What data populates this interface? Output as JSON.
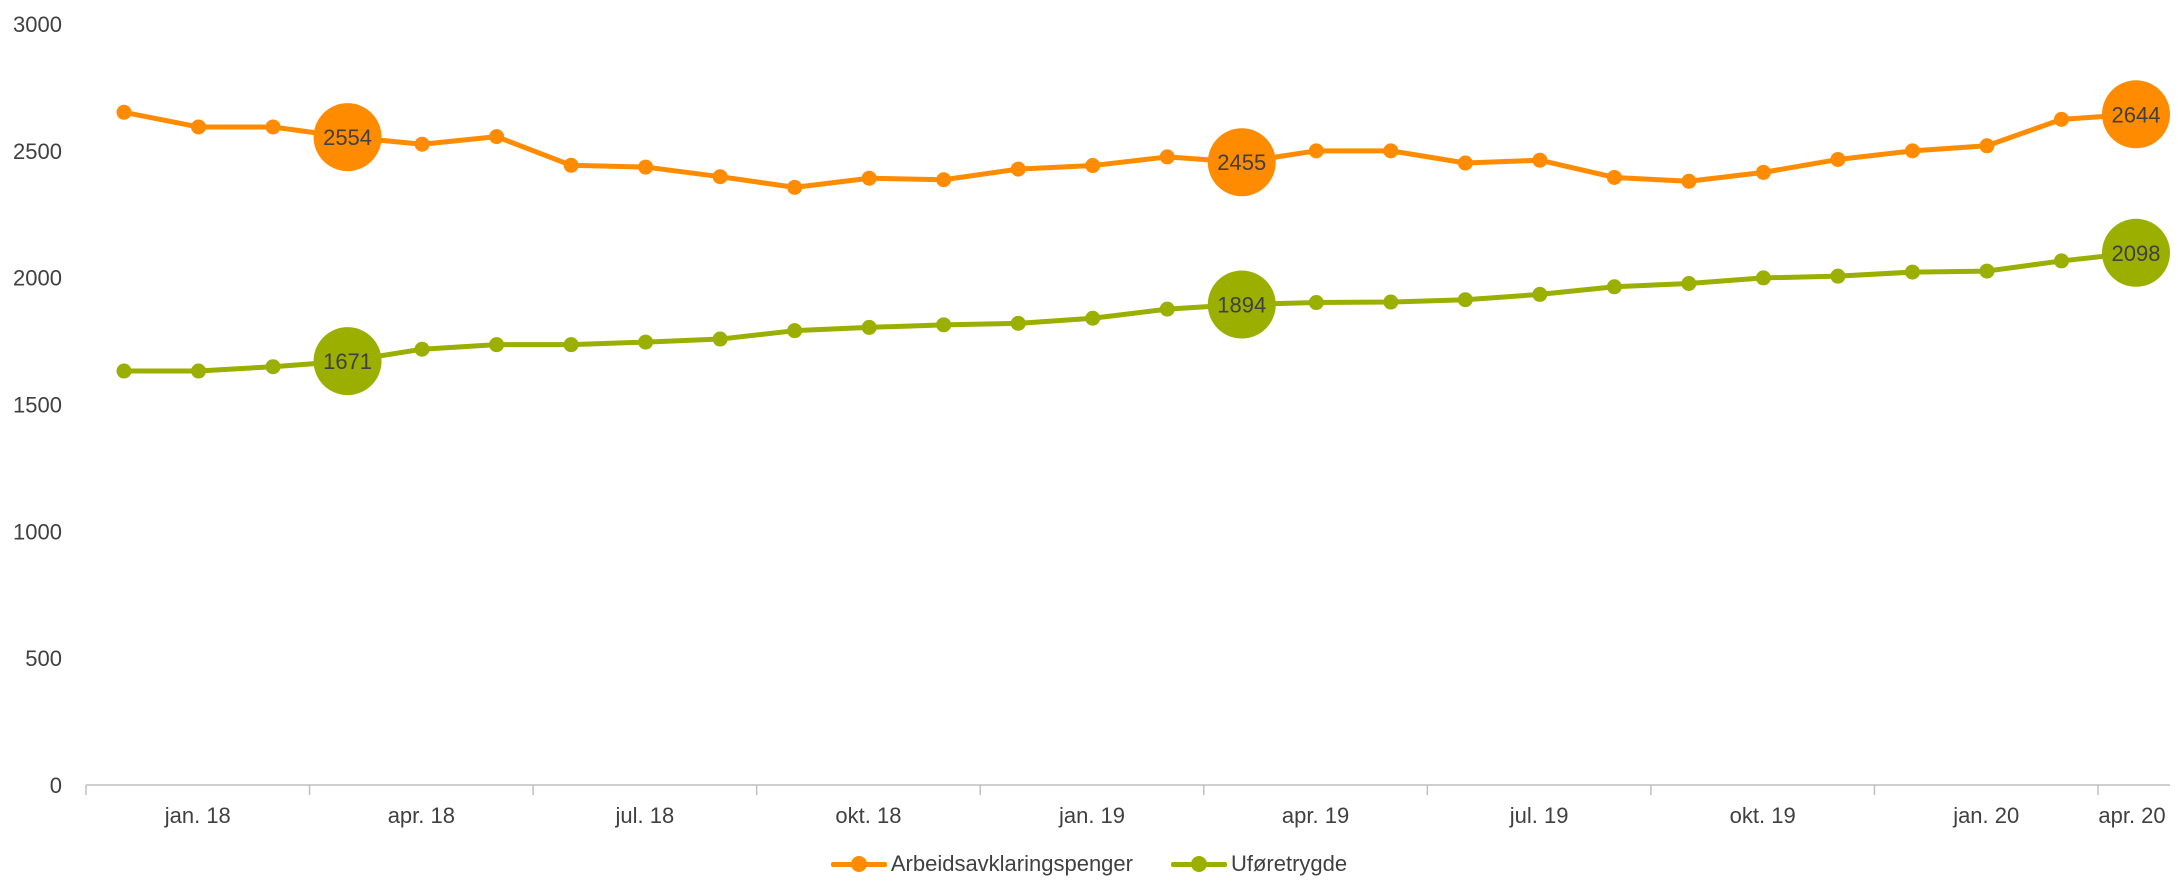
{
  "chart_data": {
    "type": "line",
    "title": "",
    "xlabel": "",
    "ylabel": "",
    "ylim": [
      0,
      3000
    ],
    "y_ticks": [
      0,
      500,
      1000,
      1500,
      2000,
      2500,
      3000
    ],
    "x_ticks": [
      "jan. 18",
      "apr. 18",
      "jul. 18",
      "okt. 18",
      "jan. 19",
      "apr. 19",
      "jul. 19",
      "okt. 19",
      "jan. 20",
      "apr. 20"
    ],
    "grid": false,
    "legend_position": "bottom",
    "series": [
      {
        "name": "Arbeidsavklaringspenger",
        "color": "#FF8C00",
        "values": [
          2652,
          2594,
          2594,
          2554,
          2526,
          2556,
          2443,
          2436,
          2398,
          2356,
          2392,
          2386,
          2428,
          2442,
          2476,
          2455,
          2500,
          2500,
          2452,
          2463,
          2395,
          2380,
          2415,
          2466,
          2500,
          2520,
          2624,
          2644
        ],
        "highlighted": [
          {
            "index": 3,
            "label": "2554"
          },
          {
            "index": 15,
            "label": "2455"
          },
          {
            "index": 27,
            "label": "2644"
          }
        ]
      },
      {
        "name": "Uføretrygde",
        "color": "#9BAF00",
        "values": [
          1632,
          1632,
          1649,
          1671,
          1718,
          1736,
          1736,
          1746,
          1758,
          1791,
          1804,
          1814,
          1820,
          1840,
          1876,
          1894,
          1902,
          1904,
          1913,
          1934,
          1964,
          1977,
          1999,
          2006,
          2022,
          2026,
          2066,
          2098
        ],
        "highlighted": [
          {
            "index": 3,
            "label": "1671"
          },
          {
            "index": 15,
            "label": "1894"
          },
          {
            "index": 27,
            "label": "2098"
          }
        ]
      }
    ]
  }
}
